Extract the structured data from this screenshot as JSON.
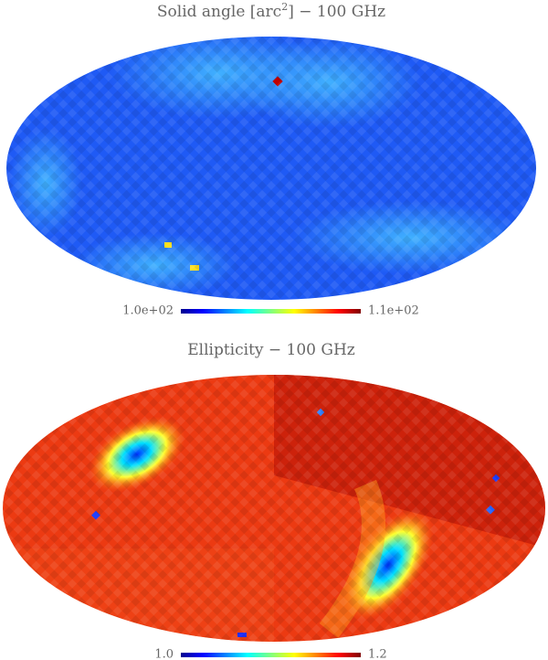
{
  "panels": [
    {
      "title": {
        "before": "Solid angle [arc",
        "sup": "2",
        "after": "] − 100 GHz"
      },
      "colorbar": {
        "min_label": "1.0e+02",
        "max_label": "1.1e+02"
      }
    },
    {
      "title": {
        "before": "Ellipticity − 100 GHz"
      },
      "colorbar": {
        "min_label": "1.0",
        "max_label": "1.2"
      }
    }
  ]
}
